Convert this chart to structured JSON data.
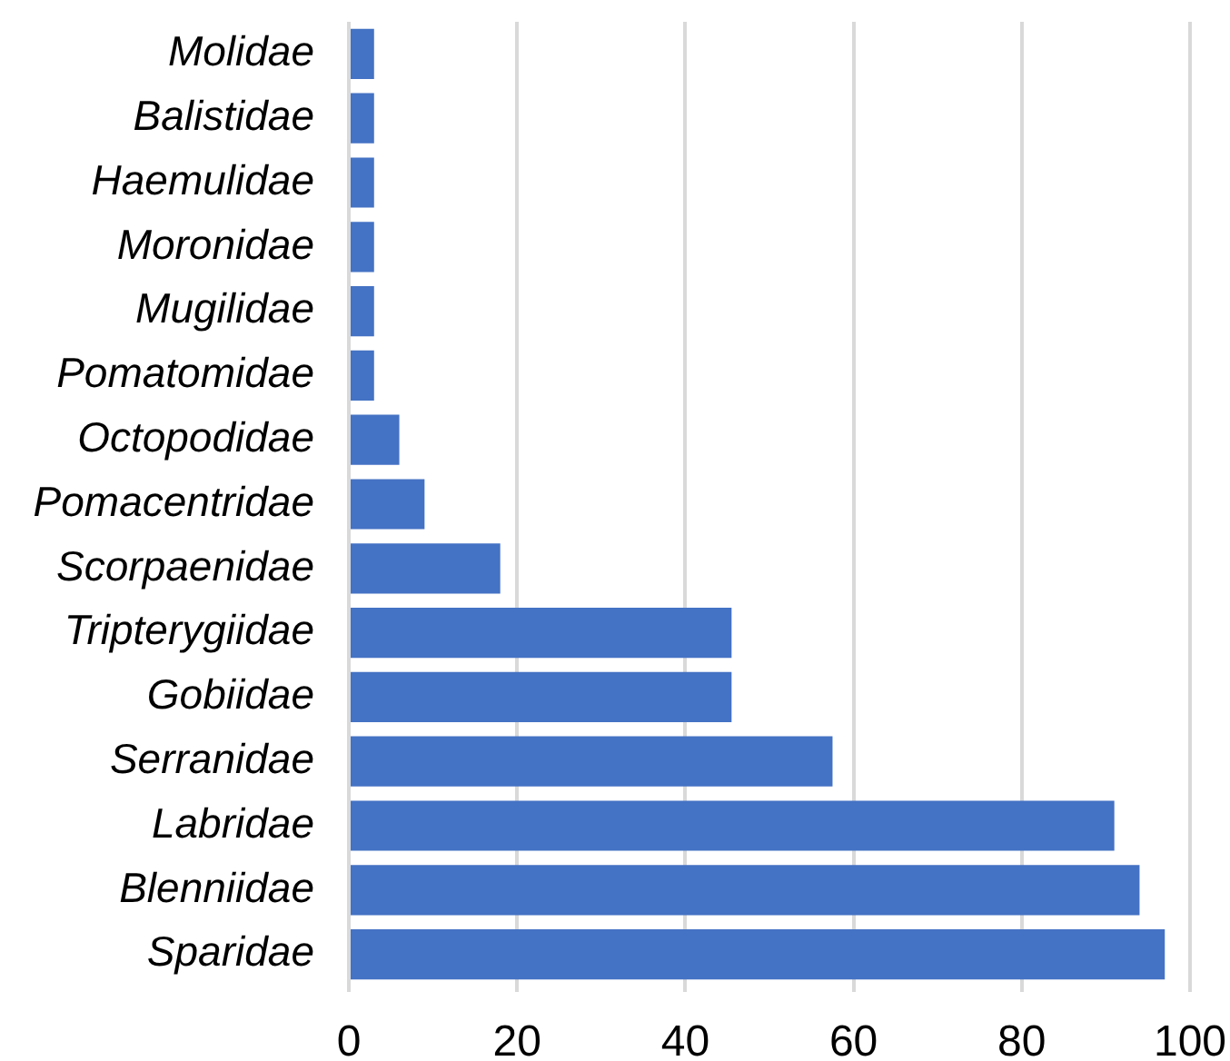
{
  "chart_data": {
    "type": "bar",
    "orientation": "horizontal",
    "categories": [
      "Molidae",
      "Balistidae",
      "Haemulidae",
      "Moronidae",
      "Mugilidae",
      "Pomatomidae",
      "Octopodidae",
      "Pomacentridae",
      "Scorpaenidae",
      "Tripterygiidae",
      "Gobiidae",
      "Serranidae",
      "Labridae",
      "Blenniidae",
      "Sparidae"
    ],
    "values": [
      3,
      3,
      3,
      3,
      3,
      3,
      6,
      9,
      18,
      45.5,
      45.5,
      57.5,
      91,
      94,
      97
    ],
    "color": "#4472c4",
    "xlim": [
      0,
      100
    ],
    "xticks": [
      0,
      20,
      40,
      60,
      80,
      100
    ],
    "grid": "x"
  }
}
